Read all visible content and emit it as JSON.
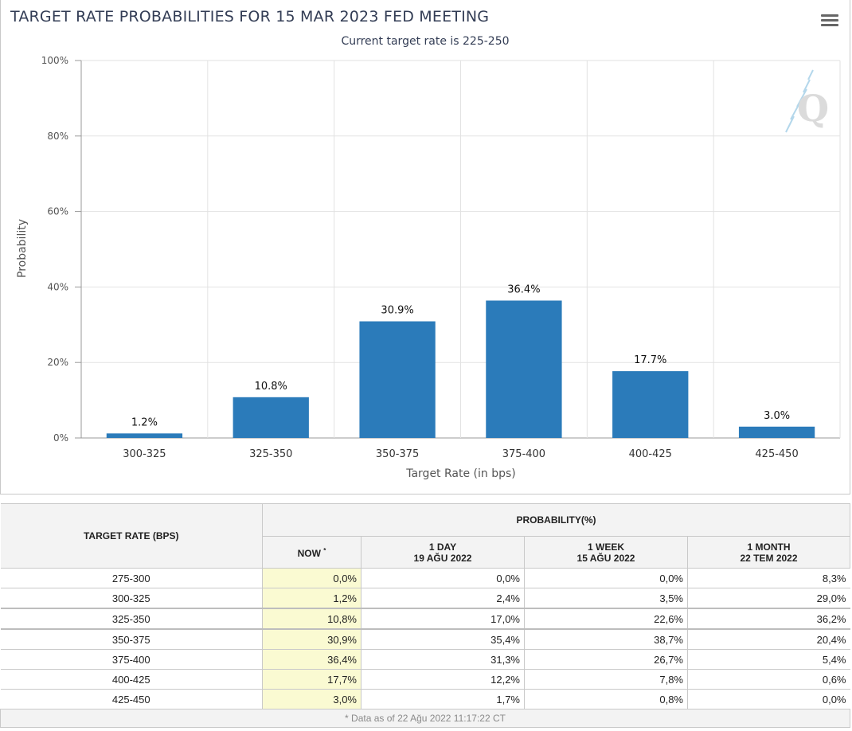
{
  "chart": {
    "menu_icon": "hamburger-menu-icon",
    "watermark_icon": "quikstrike-q-logo",
    "bar_color": "#2b7bba"
  },
  "chart_data": {
    "type": "bar",
    "title": "TARGET RATE PROBABILITIES FOR 15 MAR 2023 FED MEETING",
    "subtitle": "Current target rate is 225-250",
    "xlabel": "Target Rate (in bps)",
    "ylabel": "Probability",
    "categories": [
      "300-325",
      "325-350",
      "350-375",
      "375-400",
      "400-425",
      "425-450"
    ],
    "values": [
      1.2,
      10.8,
      30.9,
      36.4,
      17.7,
      3.0
    ],
    "value_labels": [
      "1.2%",
      "10.8%",
      "30.9%",
      "36.4%",
      "17.7%",
      "3.0%"
    ],
    "ylim": [
      0,
      100
    ],
    "yticks": [
      "0%",
      "20%",
      "40%",
      "60%",
      "80%",
      "100%"
    ],
    "grid": true,
    "legend": "none"
  },
  "table": {
    "header_rate": "TARGET RATE (BPS)",
    "header_probability": "PROBABILITY(%)",
    "columns": [
      {
        "line1": "NOW",
        "sup": "*",
        "line2": ""
      },
      {
        "line1": "1 DAY",
        "line2": "19 AĞU 2022"
      },
      {
        "line1": "1 WEEK",
        "line2": "15 AĞU 2022"
      },
      {
        "line1": "1 MONTH",
        "line2": "22 TEM 2022"
      }
    ],
    "rows": [
      {
        "rate": "275-300",
        "now": "0,0%",
        "day": "0,0%",
        "week": "0,0%",
        "month": "8,3%"
      },
      {
        "rate": "300-325",
        "now": "1,2%",
        "day": "2,4%",
        "week": "3,5%",
        "month": "29,0%"
      },
      {
        "rate": "325-350",
        "now": "10,8%",
        "day": "17,0%",
        "week": "22,6%",
        "month": "36,2%"
      },
      {
        "rate": "350-375",
        "now": "30,9%",
        "day": "35,4%",
        "week": "38,7%",
        "month": "20,4%"
      },
      {
        "rate": "375-400",
        "now": "36,4%",
        "day": "31,3%",
        "week": "26,7%",
        "month": "5,4%"
      },
      {
        "rate": "400-425",
        "now": "17,7%",
        "day": "12,2%",
        "week": "7,8%",
        "month": "0,6%"
      },
      {
        "rate": "425-450",
        "now": "3,0%",
        "day": "1,7%",
        "week": "0,8%",
        "month": "0,0%"
      }
    ],
    "footer": "* Data as of 22 Ağu 2022 11:17:22 CT"
  }
}
